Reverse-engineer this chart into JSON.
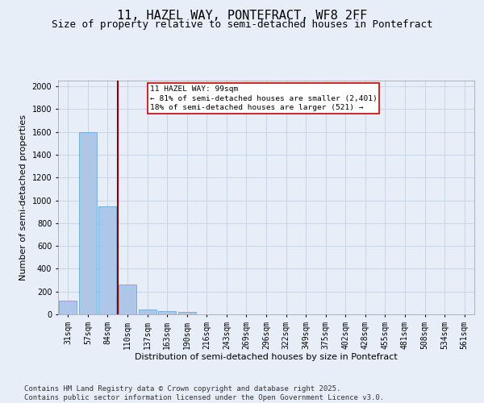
{
  "title": "11, HAZEL WAY, PONTEFRACT, WF8 2FF",
  "subtitle": "Size of property relative to semi-detached houses in Pontefract",
  "xlabel": "Distribution of semi-detached houses by size in Pontefract",
  "ylabel": "Number of semi-detached properties",
  "footer": "Contains HM Land Registry data © Crown copyright and database right 2025.\nContains public sector information licensed under the Open Government Licence v3.0.",
  "property_label": "11 HAZEL WAY: 99sqm",
  "annotation_line1": "← 81% of semi-detached houses are smaller (2,401)",
  "annotation_line2": "18% of semi-detached houses are larger (521) →",
  "bin_labels": [
    "31sqm",
    "57sqm",
    "84sqm",
    "110sqm",
    "137sqm",
    "163sqm",
    "190sqm",
    "216sqm",
    "243sqm",
    "269sqm",
    "296sqm",
    "322sqm",
    "349sqm",
    "375sqm",
    "402sqm",
    "428sqm",
    "455sqm",
    "481sqm",
    "508sqm",
    "534sqm",
    "561sqm"
  ],
  "bar_values": [
    120,
    1600,
    950,
    260,
    40,
    30,
    20,
    0,
    0,
    0,
    0,
    0,
    0,
    0,
    0,
    0,
    0,
    0,
    0,
    0,
    0
  ],
  "bar_color": "#aec6e8",
  "bar_edge_color": "#5a9fd4",
  "vline_color": "#8b0000",
  "box_color": "#cc0000",
  "ylim": [
    0,
    2050
  ],
  "yticks": [
    0,
    200,
    400,
    600,
    800,
    1000,
    1200,
    1400,
    1600,
    1800,
    2000
  ],
  "grid_color": "#c8d4e8",
  "background_color": "#e8eef8",
  "title_fontsize": 11,
  "subtitle_fontsize": 9,
  "axis_label_fontsize": 8,
  "tick_fontsize": 7,
  "footer_fontsize": 6.5
}
